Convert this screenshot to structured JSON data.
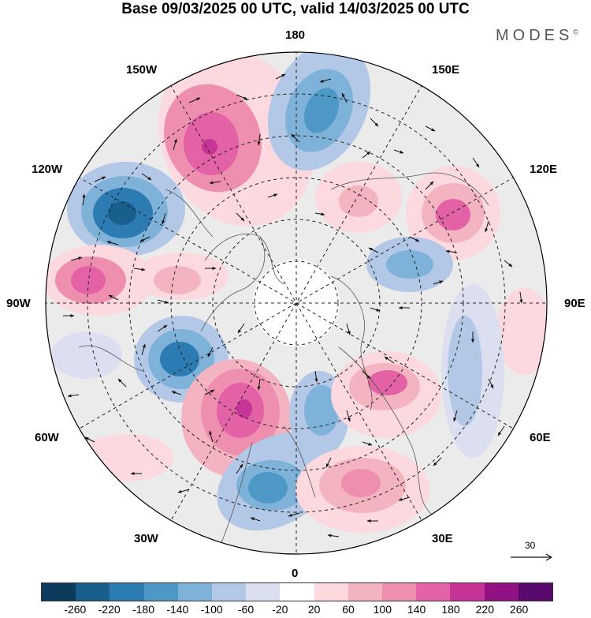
{
  "title": "Base 09/03/2025 00 UTC, valid 14/03/2025 00 UTC",
  "brand": "MODES",
  "brand_mark": "©",
  "longitude_labels": {
    "top": "180",
    "bottom": "0",
    "left": "90W",
    "right": "90E",
    "upper_left_1": "150W",
    "upper_left_2": "120W",
    "upper_right_1": "150E",
    "upper_right_2": "120E",
    "lower_left_1": "60W",
    "lower_left_2": "30W",
    "lower_right_1": "60E",
    "lower_right_2": "30E"
  },
  "reference_vector": "30",
  "colorbar": {
    "colors": [
      "#0b3c5d",
      "#185f8e",
      "#2c7bb3",
      "#4e98c7",
      "#7eb2d9",
      "#b3c7e6",
      "#dcdff0",
      "#ffffff",
      "#fbd9de",
      "#f4b3c0",
      "#ef8fb0",
      "#e362a6",
      "#c63596",
      "#911283",
      "#5a0a6e"
    ],
    "ticks": [
      "-260",
      "-220",
      "-180",
      "-140",
      "-100",
      "-60",
      "-20",
      "20",
      "60",
      "100",
      "140",
      "180",
      "220",
      "260"
    ]
  },
  "anomaly_centers": [
    {
      "sign": "positive",
      "value": 220
    },
    {
      "sign": "negative",
      "value": -200
    },
    {
      "sign": "positive",
      "value": 180
    },
    {
      "sign": "negative",
      "value": -220
    },
    {
      "sign": "positive",
      "value": 180
    },
    {
      "sign": "positive",
      "value": 220
    },
    {
      "sign": "negative",
      "value": -180
    },
    {
      "sign": "positive",
      "value": 160
    },
    {
      "sign": "negative",
      "value": -160
    },
    {
      "sign": "positive",
      "value": 180
    },
    {
      "sign": "positive",
      "value": 140
    },
    {
      "sign": "negative",
      "value": -120
    }
  ]
}
